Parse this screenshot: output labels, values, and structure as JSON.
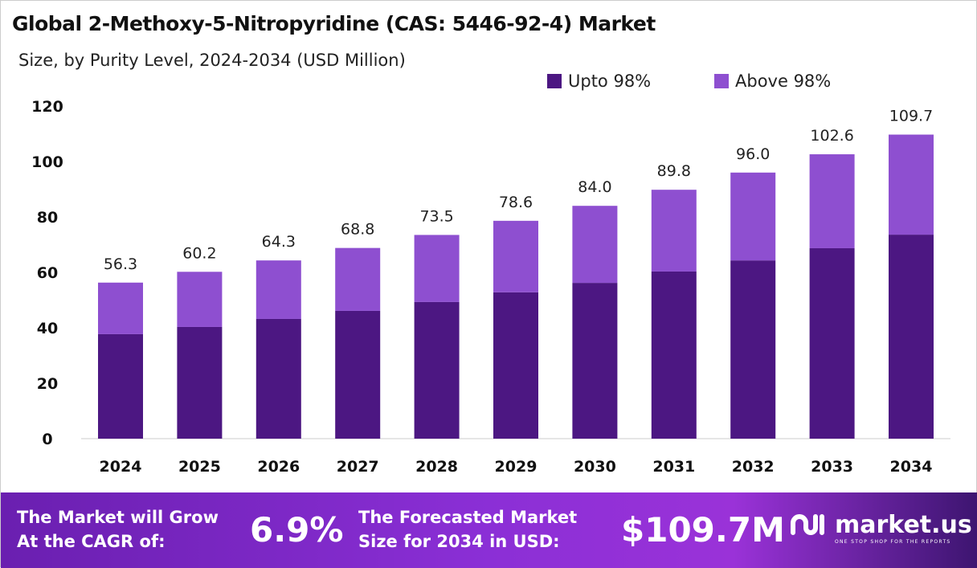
{
  "chart_data": {
    "type": "bar",
    "stacked": true,
    "title": "Global 2-Methoxy-5-Nitropyridine (CAS: 5446-92-4) Market",
    "subtitle": "Size, by Purity Level, 2024-2034 (USD Million)",
    "categories": [
      "2024",
      "2025",
      "2026",
      "2027",
      "2028",
      "2029",
      "2030",
      "2031",
      "2032",
      "2033",
      "2034"
    ],
    "series": [
      {
        "name": "Upto 98%",
        "color": "#4c1782",
        "values": [
          37.7,
          40.3,
          43.2,
          46.1,
          49.3,
          52.8,
          56.2,
          60.3,
          64.3,
          68.7,
          73.6
        ]
      },
      {
        "name": "Above 98%",
        "color": "#8e4fd0",
        "values": [
          18.6,
          19.9,
          21.1,
          22.7,
          24.2,
          25.8,
          27.8,
          29.5,
          31.7,
          33.9,
          36.1
        ]
      }
    ],
    "totals": [
      "56.3",
      "60.2",
      "64.3",
      "68.8",
      "73.5",
      "78.6",
      "84.0",
      "89.8",
      "96.0",
      "102.6",
      "109.7"
    ],
    "ylim": [
      0,
      120
    ],
    "yticks": [
      "0",
      "20",
      "40",
      "60",
      "80",
      "100",
      "120"
    ],
    "grid": false,
    "legend": "top-right"
  },
  "footer": {
    "cagr_label_1": "The Market will Grow",
    "cagr_label_2": "At the CAGR of:",
    "cagr_value": "6.9%",
    "forecast_label_1": "The Forecasted Market",
    "forecast_label_2": "Size for 2034 in USD:",
    "forecast_value": "$109.7M",
    "logo_name": "market.us",
    "logo_tagline": "ONE STOP SHOP FOR THE REPORTS"
  }
}
